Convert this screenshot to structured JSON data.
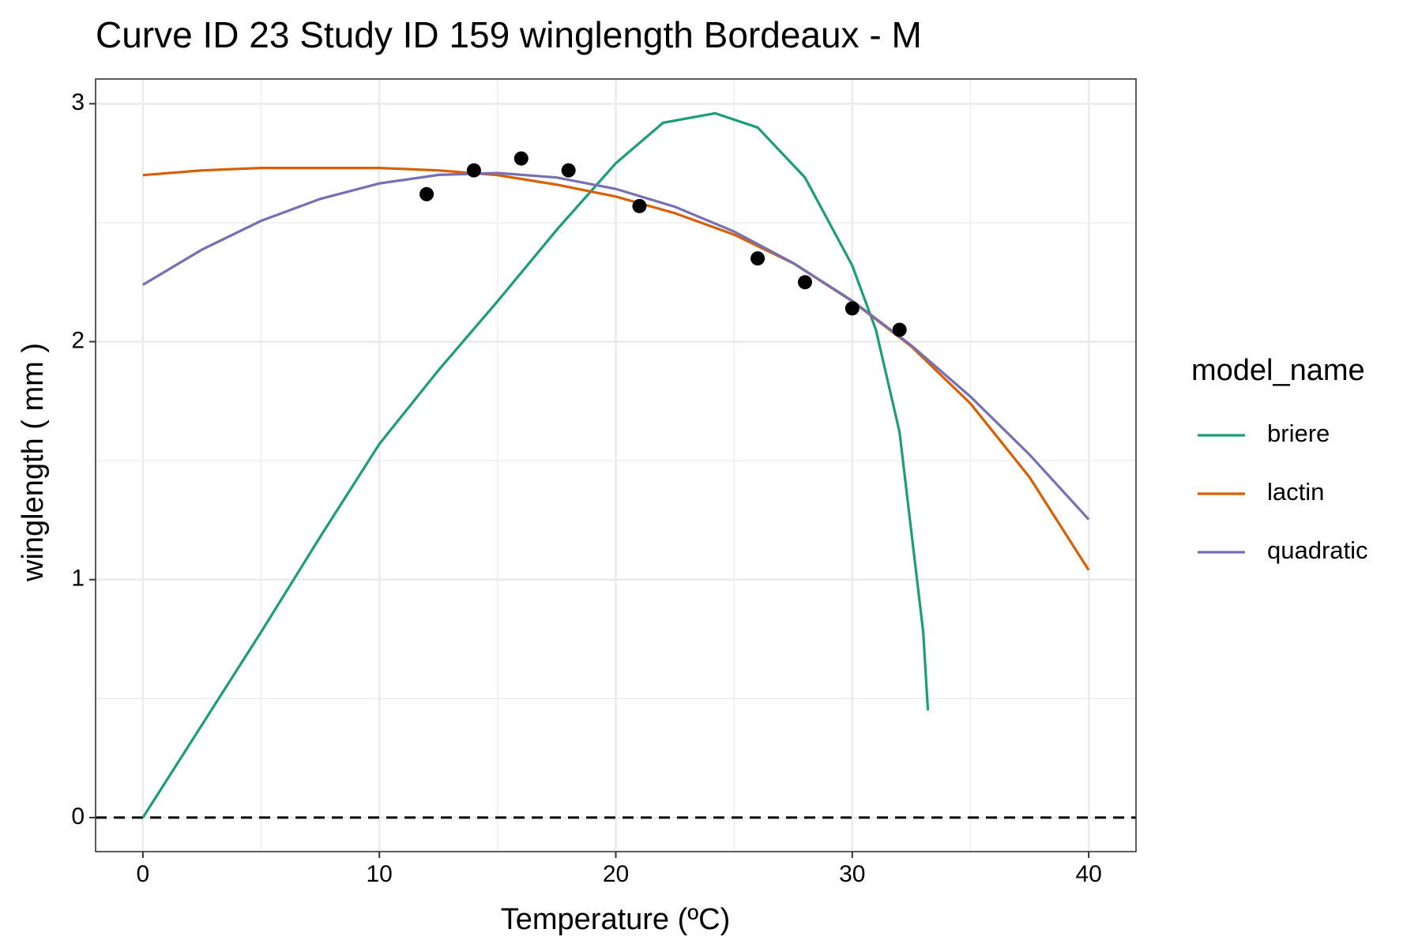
{
  "chart_data": {
    "type": "line",
    "title": "Curve ID 23 Study ID 159 winglength Bordeaux - M",
    "x_label": "Temperature (ºC)",
    "y_label": "winglength ( mm )",
    "legend_title": "model_name",
    "legend_position": "right",
    "grid": true,
    "xlim": [
      -2,
      42
    ],
    "xticks": [
      0,
      10,
      20,
      30,
      40
    ],
    "x_minor_grid": [
      5,
      15,
      25,
      35
    ],
    "ylim": [
      -0.143,
      3.104
    ],
    "yticks": [
      0,
      1,
      2,
      3
    ],
    "y_minor_grid": [
      0.5,
      1.5,
      2.5
    ],
    "hline": 0,
    "points": {
      "color": "#000000",
      "x": [
        12,
        14,
        16,
        18,
        21,
        26,
        28,
        30,
        32
      ],
      "values": [
        2.62,
        2.72,
        2.77,
        2.72,
        2.57,
        2.35,
        2.25,
        2.14,
        2.05
      ]
    },
    "series": [
      {
        "name": "briere",
        "color": "#1b9e77",
        "x": [
          0,
          2.5,
          5,
          7.5,
          10,
          12.5,
          15,
          17.5,
          20,
          22,
          24.2,
          26,
          28,
          30,
          31,
          32,
          33,
          33.2
        ],
        "values": [
          0,
          0.39,
          0.78,
          1.18,
          1.57,
          1.88,
          2.17,
          2.47,
          2.75,
          2.92,
          2.96,
          2.9,
          2.69,
          2.32,
          2.05,
          1.62,
          0.78,
          0.45
        ]
      },
      {
        "name": "lactin",
        "color": "#d95f02",
        "x": [
          0,
          2.5,
          5,
          7.5,
          10,
          12.5,
          15,
          17.5,
          20,
          22.5,
          25,
          27.5,
          30,
          32.5,
          35,
          37.5,
          40
        ],
        "values": [
          2.7,
          2.72,
          2.73,
          2.73,
          2.73,
          2.72,
          2.7,
          2.66,
          2.61,
          2.54,
          2.45,
          2.33,
          2.17,
          1.98,
          1.74,
          1.43,
          1.04
        ]
      },
      {
        "name": "quadratic",
        "color": "#7570b3",
        "x": [
          0,
          2.5,
          5,
          7.5,
          10,
          12.5,
          15,
          17.5,
          20,
          22.5,
          25,
          27.5,
          30,
          32.5,
          35,
          37.5,
          40
        ],
        "values": [
          2.239,
          2.387,
          2.508,
          2.6,
          2.665,
          2.701,
          2.709,
          2.69,
          2.642,
          2.567,
          2.463,
          2.331,
          2.172,
          1.984,
          1.769,
          1.525,
          1.253
        ]
      }
    ]
  }
}
